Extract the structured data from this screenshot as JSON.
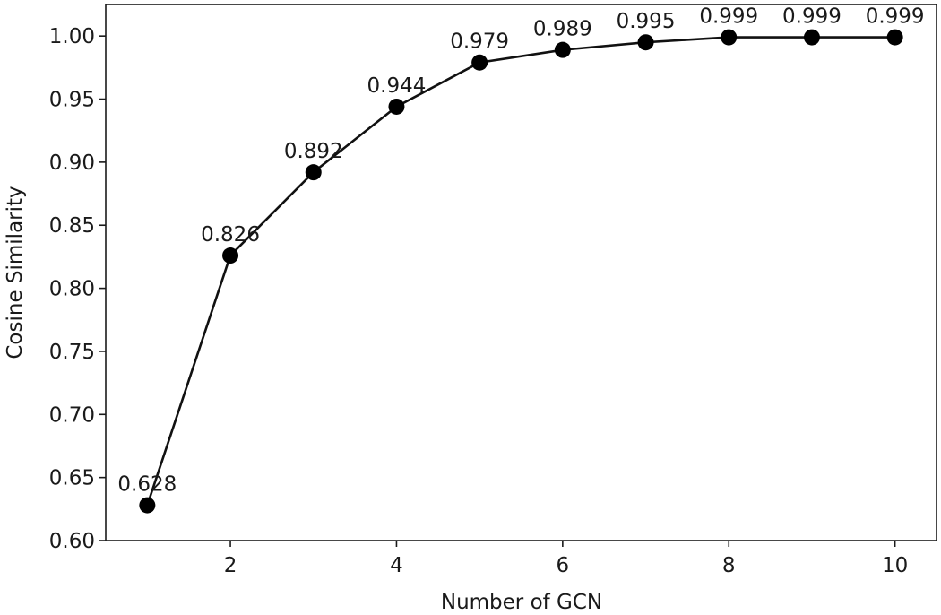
{
  "chart_data": {
    "type": "line",
    "title": "",
    "xlabel": "Number of GCN",
    "ylabel": "Cosine Similarity",
    "xlim": [
      0.5,
      10.5
    ],
    "ylim": [
      0.6,
      1.025
    ],
    "x_ticks": [
      2,
      4,
      6,
      8,
      10
    ],
    "y_ticks": [
      0.6,
      0.65,
      0.7,
      0.75,
      0.8,
      0.85,
      0.9,
      0.95,
      1.0
    ],
    "grid": false,
    "series": [
      {
        "name": "Cosine Similarity",
        "color": "#000000",
        "marker": "circle",
        "x": [
          1,
          2,
          3,
          4,
          5,
          6,
          7,
          8,
          9,
          10
        ],
        "values": [
          0.628,
          0.826,
          0.892,
          0.944,
          0.979,
          0.989,
          0.995,
          0.999,
          0.999,
          0.999
        ],
        "labels": [
          "0.628",
          "0.826",
          "0.892",
          "0.944",
          "0.979",
          "0.989",
          "0.995",
          "0.999",
          "0.999",
          "0.999"
        ]
      }
    ]
  }
}
